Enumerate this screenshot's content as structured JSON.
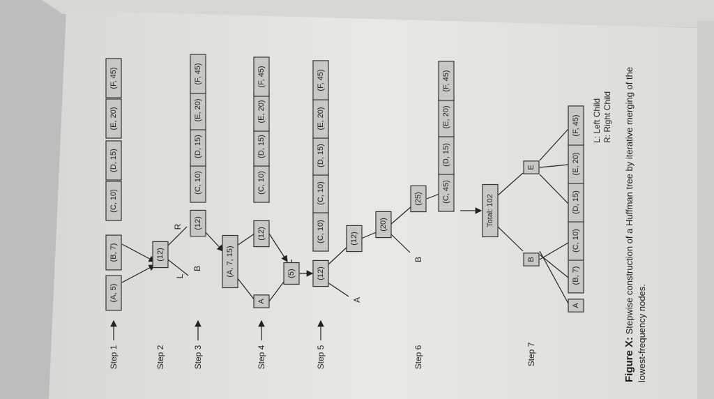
{
  "steps": [
    "Step 1",
    "Step 2",
    "Step 3",
    "Step 4",
    "Step 5",
    "Step 6",
    "Step 7"
  ],
  "nodes": {
    "step1": [
      "(A, 5)",
      "(B, 7)",
      "(C, 10)",
      "(D, 15)",
      "(E, 20)",
      "(F, 45)"
    ],
    "step2": [
      "(12)"
    ],
    "step2_labels": [
      "L",
      "B",
      "R"
    ],
    "step3": [
      "(12)",
      "(C, 10)",
      "(D, 15)",
      "(E, 20)",
      "(F, 45)",
      "(A, 7, 15)"
    ],
    "step4": [
      "A",
      "(12)",
      "(C, 10)",
      "(D, 15)",
      "(E, 20)",
      "(F, 45)",
      "(5)"
    ],
    "step5": [
      "(12)",
      "(C, 10)",
      "(C, 10)",
      "(D, 15)",
      "(E, 20)",
      "(F, 45)"
    ],
    "step5_labels": [
      "A"
    ],
    "step6": [
      "(12)",
      "(20)",
      "(25)",
      "(C, 45)",
      "(D, 15)",
      "(E, 20)",
      "(F, 45)"
    ],
    "step6_labels": [
      "B"
    ],
    "step7": [
      "Total: 102",
      "B",
      "E",
      "A",
      "(B, 7)",
      "(C, 10)",
      "(D, 15)",
      "(E, 20)",
      "(F, 45)"
    ]
  },
  "legend": [
    "L: Left Child",
    "R: Right Child"
  ],
  "caption": {
    "bold": "Figure X:",
    "line1": " Stepwise construction of a Huffman tree by iterative merging of the",
    "line2": "lowest-frequency nodes."
  },
  "colors": {
    "node_fill": "#c9c8c5",
    "page": "#e7e6e3",
    "desk": "#bdbdbd"
  }
}
